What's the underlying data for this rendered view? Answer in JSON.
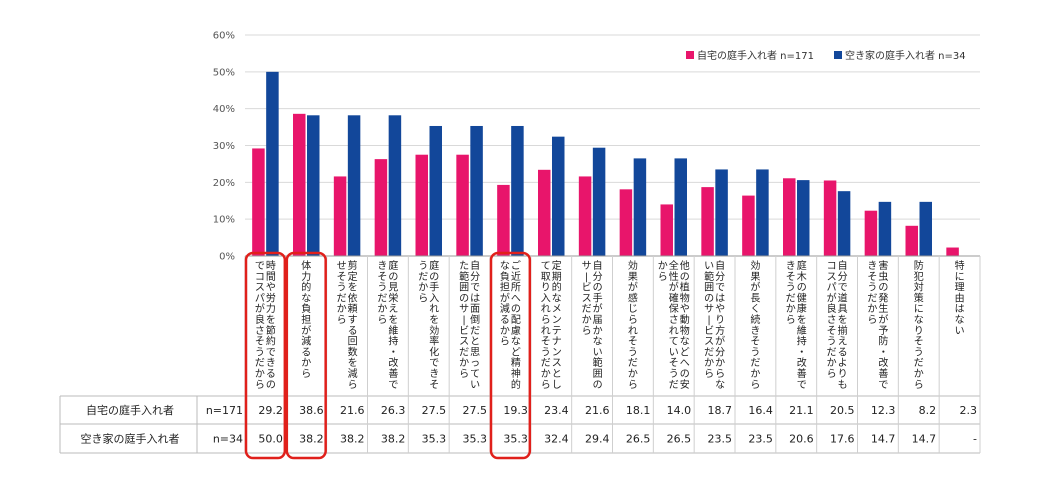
{
  "chart_data": {
    "type": "bar",
    "ylim": [
      0,
      60
    ],
    "yticks": [
      "0%",
      "10%",
      "20%",
      "30%",
      "40%",
      "50%",
      "60%"
    ],
    "grid": true,
    "legend_position": "top-right",
    "categories": [
      "時間や労力を節約できるのでコスパが良さそうだから",
      "体力的な負担が減るから",
      "剪定を依頼する回数を減らせそうだから",
      "庭の見栄えを維持・改善できそうだから",
      "庭の手入れを効率化できそうだから",
      "自分では面倒だと思っていた範囲のサービスだから",
      "ご近所への配慮など精神的な負担が減るから",
      "定期的なメンテナンスとして取り入れられそうだから",
      "自分の手が届かない範囲のサービスだから",
      "効果が感じられそうだから",
      "他の植物や動物などへの安全性が確保されていそうだから",
      "自分ではやり方が分からない範囲のサービスだから",
      "効果が長く続きそうだから",
      "庭木の健康を維持・改善できそうだから",
      "自分で道具を揃えるよりもコスパが良さそうだから",
      "害虫の発生が予防・改善できそうだから",
      "防犯対策になりそうだから",
      "特に理由はない"
    ],
    "series": [
      {
        "name": "自宅の庭手入れ者 n=171",
        "row_label": "自宅の庭手入れ者",
        "n_label": "n=171",
        "color": "#e8156b",
        "values": [
          29.2,
          38.6,
          21.6,
          26.3,
          27.5,
          27.5,
          19.3,
          23.4,
          21.6,
          18.1,
          14.0,
          18.7,
          16.4,
          21.1,
          20.5,
          12.3,
          8.2,
          2.3
        ],
        "labels": [
          "29.2",
          "38.6",
          "21.6",
          "26.3",
          "27.5",
          "27.5",
          "19.3",
          "23.4",
          "21.6",
          "18.1",
          "14.0",
          "18.7",
          "16.4",
          "21.1",
          "20.5",
          "12.3",
          "8.2",
          "2.3"
        ]
      },
      {
        "name": "空き家の庭手入れ者 n=34",
        "row_label": "空き家の庭手入れ者",
        "n_label": "n=34",
        "color": "#12479a",
        "values": [
          50.0,
          38.2,
          38.2,
          38.2,
          35.3,
          35.3,
          35.3,
          32.4,
          29.4,
          26.5,
          26.5,
          23.5,
          23.5,
          20.6,
          17.6,
          14.7,
          14.7,
          0
        ],
        "labels": [
          "50.0",
          "38.2",
          "38.2",
          "38.2",
          "35.3",
          "35.3",
          "35.3",
          "32.4",
          "29.4",
          "26.5",
          "26.5",
          "23.5",
          "23.5",
          "20.6",
          "17.6",
          "14.7",
          "14.7",
          "-"
        ]
      }
    ],
    "highlighted_categories": [
      0,
      1,
      6
    ],
    "highlight_color": "#e0201b"
  }
}
